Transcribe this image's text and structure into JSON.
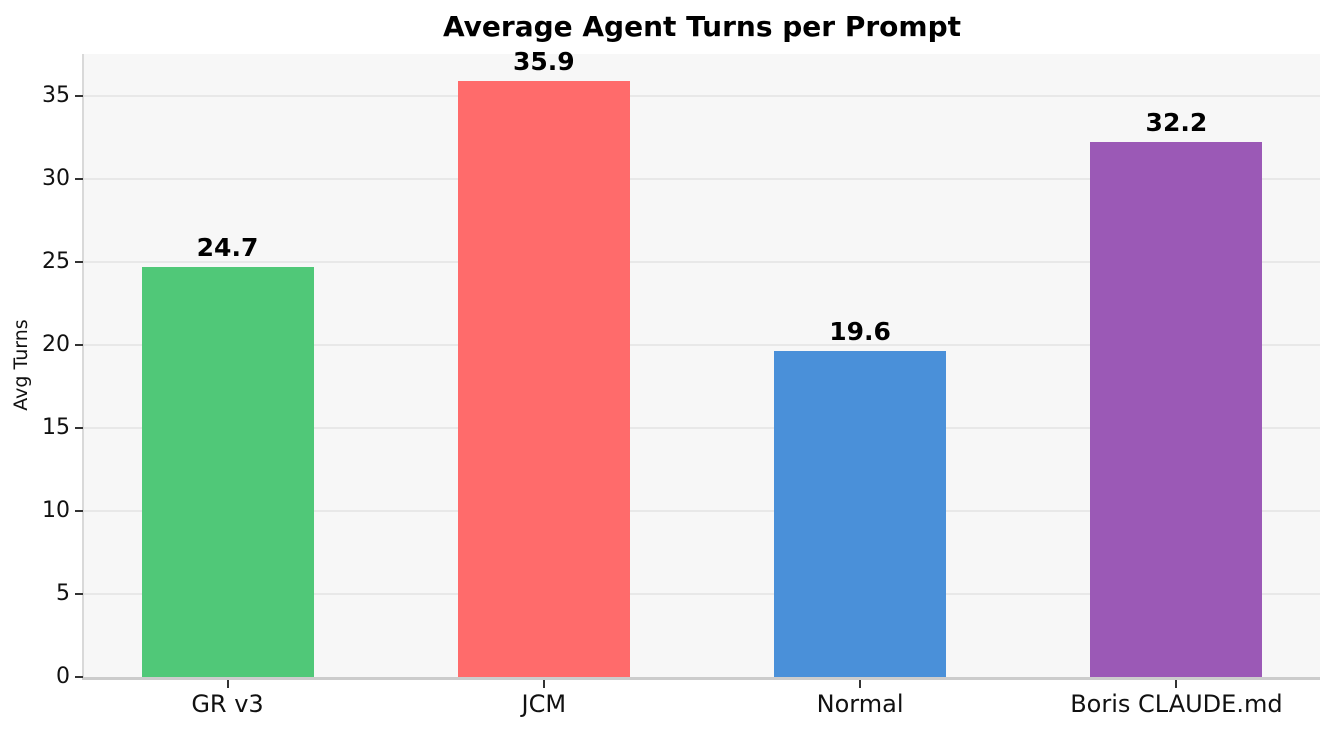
{
  "chart_data": {
    "type": "bar",
    "title": "Average Agent Turns per Prompt",
    "xlabel": "",
    "ylabel": "Avg Turns",
    "categories": [
      "GR v3",
      "JCM",
      "Normal",
      "Boris CLAUDE.md"
    ],
    "values": [
      24.7,
      35.9,
      19.6,
      32.2
    ],
    "value_labels": [
      "24.7",
      "35.9",
      "19.6",
      "32.2"
    ],
    "bar_colors": [
      "#50C878",
      "#FF6B6B",
      "#4A90D9",
      "#9B59B6"
    ],
    "ylim": [
      0,
      37.5
    ],
    "yticks": [
      0,
      5,
      10,
      15,
      20,
      25,
      30,
      35
    ],
    "grid": true,
    "legend_position": "none",
    "plot_background": "#f7f7f7",
    "gridline_color": "#e8e8e8",
    "value_label_color": "#000000",
    "title_color": "#000000"
  }
}
